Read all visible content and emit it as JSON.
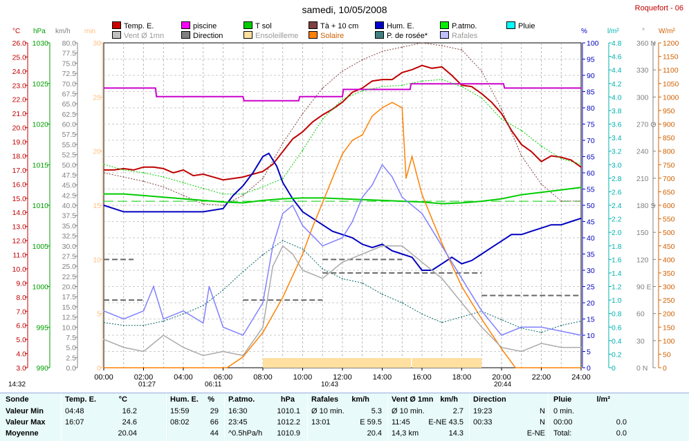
{
  "title": "samedi, 10/05/2008",
  "station": "Roquefort - 06",
  "colors": {
    "temp": "#c00000",
    "piscine": "#cc00cc",
    "tsol": "#00cc00",
    "ta10": "#804040",
    "hum": "#0000c0",
    "patmo": "#00cc00",
    "pluie": "#00e0e0",
    "vent": "#bbbbbb",
    "direction": "#808080",
    "ensoleillement": "#ffe0a0",
    "solaire": "#ff8000",
    "rosee": "#006060",
    "rafales": "#8080ff",
    "table_bg": "#e8fafa"
  },
  "legend": [
    {
      "label": "Temp. E.",
      "color": "#cc0000",
      "row": 0,
      "col": 0
    },
    {
      "label": "piscine",
      "color": "#ff00ff",
      "row": 0,
      "col": 1
    },
    {
      "label": "T sol",
      "color": "#00cc00",
      "row": 0,
      "col": 2
    },
    {
      "label": "Tà + 10 cm",
      "color": "#804040",
      "row": 0,
      "col": 3
    },
    {
      "label": "Hum. E.",
      "color": "#0000cc",
      "row": 0,
      "col": 4
    },
    {
      "label": "P.atmo.",
      "color": "#00ee00",
      "row": 0,
      "col": 5
    },
    {
      "label": "Pluie",
      "color": "#00ffff",
      "row": 0,
      "col": 6
    },
    {
      "label": "Vent Ø 1mn",
      "color": "#c0c0c0",
      "row": 1,
      "col": 0
    },
    {
      "label": "Direction",
      "color": "#808080",
      "row": 1,
      "col": 1
    },
    {
      "label": "Ensoleilleme",
      "color": "#ffe0a0",
      "row": 1,
      "col": 2
    },
    {
      "label": "Solaire",
      "color": "#ff8000",
      "row": 1,
      "col": 3
    },
    {
      "label": "P. de rosée*",
      "color": "#408080",
      "row": 1,
      "col": 4
    },
    {
      "label": "Rafales",
      "color": "#c0c0ff",
      "row": 1,
      "col": 5
    }
  ],
  "axis_units": {
    "temp": "°C",
    "pressure": "hPa",
    "wind": "km/h",
    "minutes": "min",
    "hum": "%",
    "rain": "l/m²",
    "dir": "°",
    "solar": "W/m²"
  },
  "markers": {
    "sunrise": "06:11",
    "sunset": "20:44",
    "moonset": "01:27",
    "moonrise_left": "14:32",
    "max_solar_time": "10:43"
  },
  "chart_data": {
    "type": "line",
    "xlabel": "",
    "x_ticks": [
      "00:00",
      "02:00",
      "04:00",
      "06:00",
      "08:00",
      "10:00",
      "12:00",
      "14:00",
      "16:00",
      "18:00",
      "20:00",
      "22:00",
      "24:00"
    ],
    "axes": {
      "temp": {
        "min": 3.0,
        "max": 26.0,
        "step": 0.5,
        "ticks": [
          "3.0",
          "4.0",
          "5.0",
          "6.0",
          "7.0",
          "8.0",
          "9.0",
          "10.0",
          "11.0",
          "12.0",
          "13.0",
          "14.0",
          "15.0",
          "16.0",
          "17.0",
          "18.0",
          "19.0",
          "20.0",
          "21.0",
          "22.0",
          "23.0",
          "24.0",
          "25.0",
          "26.0"
        ]
      },
      "pressure": {
        "min": 990,
        "max": 1030,
        "ticks": [
          "990",
          "995",
          "1000",
          "1005",
          "1010",
          "1015",
          "1020",
          "1025",
          "1030"
        ]
      },
      "wind": {
        "min": 0.0,
        "max": 80.0,
        "ticks": [
          "0.0",
          "2.5",
          "5.0",
          "7.5",
          "10.0",
          "12.5",
          "15.0",
          "17.5",
          "20.0",
          "22.5",
          "25.0",
          "27.5",
          "30.0",
          "32.5",
          "35.0",
          "37.5",
          "40.0",
          "42.5",
          "45.0",
          "47.5",
          "50.0",
          "52.5",
          "55.0",
          "57.5",
          "60.0",
          "62.5",
          "65.0",
          "67.5",
          "70.0",
          "72.5",
          "75.0",
          "77.5",
          "80.0"
        ]
      },
      "minutes": {
        "min": 0,
        "max": 30,
        "ticks": [
          "0",
          "5",
          "10",
          "15",
          "20",
          "25",
          "30"
        ]
      },
      "hum": {
        "min": 0,
        "max": 100,
        "ticks": [
          "0",
          "5",
          "10",
          "15",
          "20",
          "25",
          "30",
          "35",
          "40",
          "45",
          "50",
          "55",
          "60",
          "65",
          "70",
          "75",
          "80",
          "85",
          "90",
          "95",
          "100"
        ]
      },
      "rain": {
        "min": 0.0,
        "max": 4.8,
        "ticks": [
          "0",
          "0.2",
          "0.4",
          "0.6",
          "0.8",
          "1.0",
          "1.2",
          "1.4",
          "1.6",
          "1.8",
          "2.0",
          "2.2",
          "2.4",
          "2.6",
          "2.8",
          "3.0",
          "3.2",
          "3.4",
          "3.6",
          "3.8",
          "4.0",
          "4.2",
          "4.4",
          "4.6",
          "4.8"
        ]
      },
      "dir": {
        "min": 0,
        "max": 360,
        "ticks": [
          {
            "v": 0,
            "t": "0  N"
          },
          {
            "v": 30,
            "t": "30"
          },
          {
            "v": 60,
            "t": "60"
          },
          {
            "v": 90,
            "t": "90  E"
          },
          {
            "v": 120,
            "t": "120"
          },
          {
            "v": 150,
            "t": "150"
          },
          {
            "v": 180,
            "t": "180 S"
          },
          {
            "v": 210,
            "t": "210"
          },
          {
            "v": 240,
            "t": "240"
          },
          {
            "v": 270,
            "t": "270 O"
          },
          {
            "v": 300,
            "t": "300"
          },
          {
            "v": 330,
            "t": "330"
          },
          {
            "v": 360,
            "t": "360 N"
          }
        ]
      },
      "solar": {
        "min": 0,
        "max": 1200,
        "ticks": [
          "0",
          "50",
          "100",
          "150",
          "200",
          "250",
          "300",
          "350",
          "400",
          "450",
          "500",
          "550",
          "600",
          "650",
          "700",
          "750",
          "800",
          "850",
          "900",
          "950",
          "1000",
          "1050",
          "1100",
          "1150",
          "1200"
        ]
      }
    },
    "series": [
      {
        "name": "Temp. E.",
        "axis": "temp",
        "color": "#c00000",
        "x": [
          0,
          0.5,
          1,
          1.5,
          2,
          2.5,
          3,
          3.5,
          4,
          4.5,
          5,
          5.5,
          6,
          6.5,
          7,
          7.5,
          8,
          8.5,
          9,
          9.5,
          10,
          10.5,
          11,
          11.5,
          12,
          12.5,
          13,
          13.5,
          14,
          14.5,
          15,
          15.5,
          16,
          16.5,
          17,
          17.5,
          18,
          18.5,
          19,
          19.5,
          20,
          20.5,
          21,
          21.5,
          22,
          22.5,
          23,
          23.5,
          24
        ],
        "y": [
          17.0,
          17.0,
          17.1,
          17.0,
          17.2,
          17.2,
          17.1,
          16.8,
          17.0,
          16.6,
          16.7,
          16.5,
          16.3,
          16.4,
          16.5,
          16.7,
          16.9,
          17.4,
          18.3,
          19.2,
          19.7,
          20.4,
          20.9,
          21.3,
          21.8,
          22.5,
          22.8,
          23.3,
          23.4,
          23.4,
          23.9,
          24.1,
          24.4,
          24.2,
          24.3,
          23.7,
          23.0,
          22.9,
          22.4,
          21.8,
          21.0,
          19.8,
          18.8,
          18.3,
          17.6,
          18.0,
          17.9,
          17.7,
          17.2
        ]
      },
      {
        "name": "piscine",
        "axis": "temp",
        "color": "#cc00cc",
        "x": [
          0,
          2.6,
          2.65,
          7.0,
          7.05,
          9.8,
          9.85,
          12.0,
          12.05,
          15.4,
          15.45,
          20.1,
          20.15,
          24
        ],
        "y": [
          22.8,
          22.8,
          22.2,
          22.2,
          21.9,
          21.9,
          22.2,
          22.2,
          22.7,
          22.7,
          23.1,
          23.1,
          22.8,
          22.8
        ]
      },
      {
        "name": "Tà + 10 cm",
        "axis": "temp",
        "color": "#804040",
        "x": [
          0,
          1,
          2,
          3,
          4,
          5,
          6,
          7,
          8,
          9,
          10,
          11,
          12,
          13,
          14,
          15,
          16,
          17,
          18,
          19,
          20,
          21,
          22,
          23,
          24
        ],
        "y": [
          16.8,
          16.5,
          16.2,
          15.8,
          15.2,
          14.6,
          14.5,
          15.2,
          16.4,
          18.9,
          21.0,
          22.8,
          24.0,
          24.8,
          25.4,
          25.7,
          26.0,
          25.8,
          25.5,
          24.0,
          21.3,
          18.0,
          16.0,
          14.8,
          14.8
        ]
      },
      {
        "name": "T sol",
        "axis": "temp",
        "color": "#00cc00",
        "x": [
          0,
          1,
          2,
          3,
          4,
          5,
          6,
          7,
          8,
          9,
          10,
          11,
          12,
          13,
          14,
          15,
          16,
          17,
          18,
          19,
          20,
          21,
          22,
          23,
          24
        ],
        "y": [
          17.4,
          17.0,
          16.8,
          16.5,
          16.1,
          15.7,
          15.3,
          15.3,
          15.8,
          16.4,
          18.4,
          20.6,
          22.0,
          22.6,
          22.9,
          23.0,
          23.3,
          23.4,
          22.9,
          22.1,
          20.6,
          19.8,
          18.7,
          17.8,
          17.4
        ]
      },
      {
        "name": "Hum. E.",
        "axis": "hum",
        "color": "#0000c0",
        "x": [
          0,
          0.5,
          1,
          2,
          3,
          4,
          5,
          6,
          6.5,
          7,
          7.5,
          8,
          8.3,
          8.7,
          9,
          9.5,
          10,
          10.5,
          11,
          11.5,
          12,
          12.5,
          13,
          13.5,
          14,
          14.5,
          15,
          15.5,
          16,
          16.5,
          17,
          17.5,
          18,
          18.5,
          19,
          19.5,
          20,
          20.5,
          21,
          21.5,
          22,
          22.5,
          23,
          23.5,
          24
        ],
        "y": [
          50,
          49,
          48,
          48,
          48,
          48,
          48,
          49,
          53,
          56,
          60,
          65,
          66,
          62,
          57,
          52,
          48,
          46,
          44,
          42,
          41,
          40,
          38,
          37,
          38,
          36,
          35,
          34,
          30,
          30,
          32,
          34,
          32,
          33,
          35,
          37,
          39,
          41,
          41,
          42,
          43,
          44,
          44,
          45,
          46
        ]
      },
      {
        "name": "P.atmo.",
        "axis": "pressure",
        "color": "#00cc00",
        "x": [
          0,
          1,
          2,
          3,
          4,
          5,
          6,
          7,
          8,
          9,
          10,
          11,
          12,
          13,
          14,
          15,
          16,
          17,
          18,
          19,
          20,
          21,
          22,
          23,
          24
        ],
        "y": [
          1011.4,
          1011.4,
          1011.2,
          1011.0,
          1010.8,
          1010.6,
          1010.4,
          1010.3,
          1010.6,
          1010.8,
          1010.9,
          1010.9,
          1010.8,
          1010.7,
          1010.6,
          1010.5,
          1010.4,
          1010.2,
          1010.3,
          1010.5,
          1010.8,
          1011.3,
          1011.6,
          1011.9,
          1012.2
        ]
      },
      {
        "name": "Solaire",
        "axis": "solar",
        "color": "#ff8000",
        "x": [
          0,
          6.2,
          7,
          8,
          9,
          10,
          10.5,
          11,
          11.5,
          12,
          12.5,
          13,
          13.5,
          14,
          14.5,
          15,
          15.2,
          15.5,
          16,
          16.5,
          17,
          18,
          19,
          20,
          20.7,
          24
        ],
        "y": [
          0,
          0,
          40,
          130,
          260,
          420,
          520,
          610,
          700,
          790,
          840,
          860,
          930,
          960,
          980,
          960,
          700,
          780,
          640,
          550,
          460,
          300,
          180,
          70,
          0,
          0
        ]
      },
      {
        "name": "P. de rosée*",
        "axis": "temp",
        "color": "#006060",
        "x": [
          0,
          1,
          2,
          3,
          4,
          5,
          6,
          7,
          8,
          9,
          10,
          11,
          12,
          13,
          14,
          15,
          16,
          17,
          18,
          19,
          20,
          21,
          22,
          23,
          24
        ],
        "y": [
          6.2,
          6.0,
          6.0,
          6.3,
          6.8,
          7.4,
          8.5,
          9.8,
          11.0,
          12.0,
          11.4,
          10.0,
          9.3,
          9.0,
          8.2,
          7.6,
          6.8,
          6.2,
          6.6,
          7.0,
          6.4,
          5.8,
          5.5,
          6.0,
          6.3
        ]
      },
      {
        "name": "Vent Ø 1mn",
        "axis": "wind",
        "color": "#aaaaaa",
        "x": [
          0,
          1,
          2,
          3,
          4,
          5,
          6,
          7,
          8,
          8.5,
          9,
          9.5,
          10,
          11,
          12,
          13,
          14,
          15,
          16,
          17,
          18,
          19,
          20,
          21,
          22,
          23,
          24
        ],
        "y": [
          7,
          5,
          4,
          8,
          5,
          3,
          4,
          3,
          10,
          25,
          30,
          28,
          24,
          22,
          26,
          28,
          30,
          30,
          26,
          22,
          16,
          10,
          5,
          4,
          6,
          5,
          5
        ]
      },
      {
        "name": "Rafales",
        "axis": "wind",
        "color": "#8080ff",
        "x": [
          0,
          1,
          2,
          2.5,
          3,
          4,
          5,
          5.3,
          6,
          7,
          8,
          8.5,
          9,
          9.5,
          10,
          11,
          12,
          12.5,
          13,
          13.5,
          14,
          14.5,
          15,
          16,
          17,
          18,
          19,
          20,
          21,
          22,
          23,
          24
        ],
        "y": [
          14,
          12,
          14,
          20,
          12,
          14,
          11,
          20,
          10,
          8,
          16,
          30,
          38,
          40,
          35,
          30,
          32,
          36,
          42,
          45,
          50,
          47,
          42,
          38,
          30,
          22,
          14,
          8,
          10,
          10,
          9,
          8
        ]
      }
    ],
    "direction_segments": [
      {
        "x1": 0,
        "x2": 2,
        "deg": 75
      },
      {
        "x1": 7,
        "x2": 11,
        "deg": 75
      },
      {
        "x1": 11,
        "x2": 15,
        "deg": 120
      },
      {
        "x1": 0,
        "x2": 1.5,
        "deg": 120
      },
      {
        "x1": 11,
        "x2": 19,
        "deg": 105
      },
      {
        "x1": 19,
        "x2": 24,
        "deg": 80
      }
    ],
    "sunshine_bars": [
      {
        "x1": 8.0,
        "x2": 15.45,
        "minutes": 1
      },
      {
        "x1": 15.5,
        "x2": 19.0,
        "minutes": 1
      }
    ]
  },
  "table": {
    "headers": [
      "Sonde",
      "Temp. E.",
      "°C",
      "Hum. E.",
      "%",
      "P.atmo.",
      "hPa",
      "Rafales",
      "km/h",
      "Vent Ø 1mn",
      "km/h",
      "Direction",
      "Pluie",
      "l/m²"
    ],
    "rows": [
      {
        "label": "Valeur Min",
        "cells": [
          "04:48",
          "16.2",
          "15:59",
          "29",
          "16:30",
          "1010.1",
          "Ø 10 min.",
          "5.3",
          "Ø 10 min.",
          "2.7",
          "19:23",
          "N",
          "0 min.",
          ""
        ]
      },
      {
        "label": "Valeur Max",
        "cells": [
          "16:07",
          "24.6",
          "08:02",
          "66",
          "23:45",
          "1012.2",
          "13:01",
          "E 59.5",
          "11:45",
          "E-NE 43.5",
          "00:33",
          "N",
          "00:00",
          "0.0"
        ]
      },
      {
        "label": "Moyenne",
        "cells": [
          "",
          "20.04",
          "",
          "44",
          "^0.5hPa/h",
          "1010.9",
          "",
          "20.4",
          "14,3 km",
          "14.3",
          "",
          "E-NE",
          "Total:",
          "0.0"
        ]
      }
    ]
  }
}
